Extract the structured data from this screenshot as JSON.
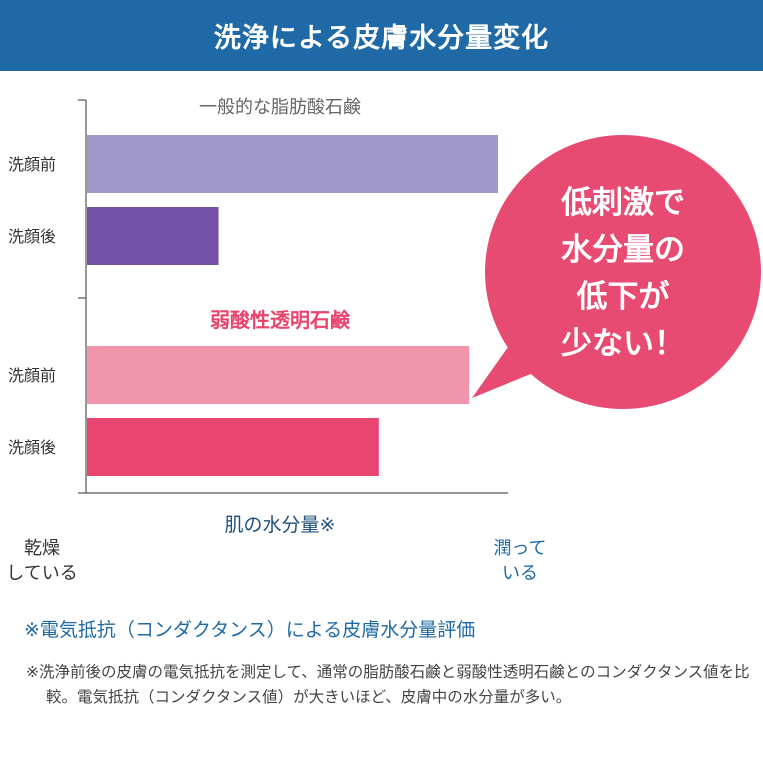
{
  "header": {
    "title": "洗浄による皮膚水分量変化"
  },
  "chart_data": {
    "type": "bar",
    "orientation": "horizontal",
    "groups": [
      {
        "name": "一般的な脂肪酸石鹸",
        "color": "#666666",
        "bars": [
          {
            "label": "洗顔前",
            "value": 100,
            "color": "#a098cb"
          },
          {
            "label": "洗顔後",
            "value": 32,
            "color": "#7452a8"
          }
        ]
      },
      {
        "name": "弱酸性透明石鹸",
        "color": "#e8456e",
        "bars": [
          {
            "label": "洗顔前",
            "value": 93,
            "color": "#ef94aa"
          },
          {
            "label": "洗顔後",
            "value": 71,
            "color": "#e74470"
          }
        ]
      }
    ],
    "xlim": [
      0,
      100
    ],
    "grid": false
  },
  "bubble": {
    "lines": [
      "低刺激で",
      "水分量の",
      "低下が",
      "少ない！"
    ],
    "color": "#e84b71"
  },
  "scale": {
    "title": "肌の水分量※",
    "left": [
      "乾燥",
      "している"
    ],
    "right": [
      "潤って",
      "いる"
    ],
    "arrow_from": "#8ec3ec",
    "arrow_to": "#1c6ea6"
  },
  "note": {
    "title": "※電気抵抗（コンダクタンス）による皮膚水分量評価",
    "body": "※洗浄前後の皮膚の電気抵抗を測定して、通常の脂肪酸石鹸と弱酸性透明石鹸とのコンダクタンス値を比較。電気抵抗（コンダクタンス値）が大きいほど、皮膚中の水分量が多い。"
  }
}
